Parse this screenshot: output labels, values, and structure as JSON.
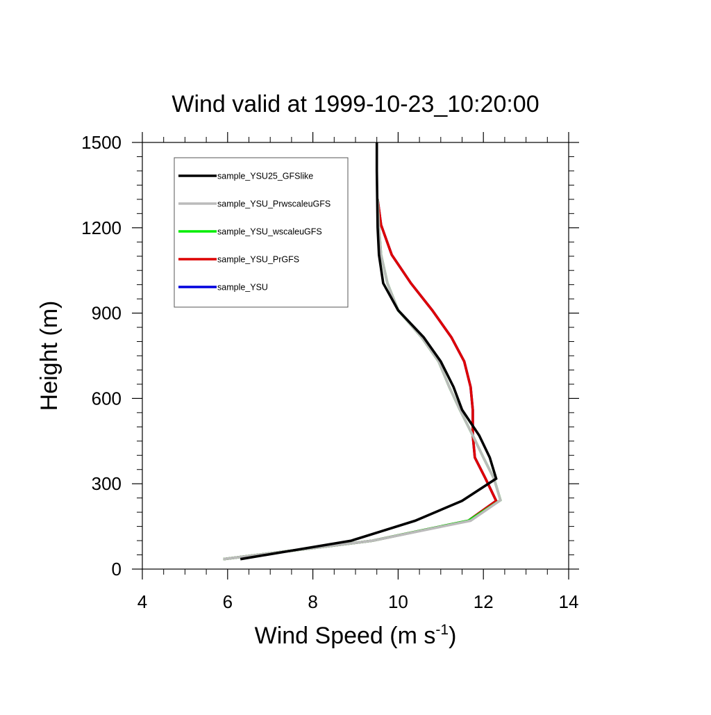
{
  "chart_data": {
    "type": "line",
    "title": "Wind valid at 1999-10-23_10:20:00",
    "xlabel": "Wind Speed (m s",
    "xlabel_superscript": "-1",
    "xlabel_suffix": ")",
    "ylabel": "Height (m)",
    "xlim": [
      4,
      14
    ],
    "ylim": [
      0,
      1500
    ],
    "x_ticks": [
      4,
      6,
      8,
      10,
      12,
      14
    ],
    "y_ticks": [
      0,
      300,
      600,
      900,
      1200,
      1500
    ],
    "x_tick_labels": [
      "4",
      "6",
      "8",
      "10",
      "12",
      "14"
    ],
    "y_tick_labels": [
      "0",
      "300",
      "600",
      "900",
      "1200",
      "1500"
    ],
    "x_minor_step": 0.5,
    "y_minor_step": 50,
    "grid": false,
    "legend_position": "top-left",
    "series": [
      {
        "name": "sample_YSU25_GFSlike",
        "color": "#000000",
        "points": [
          [
            6.3,
            35
          ],
          [
            8.9,
            100
          ],
          [
            10.4,
            170
          ],
          [
            11.5,
            240
          ],
          [
            12.3,
            318
          ],
          [
            12.15,
            392
          ],
          [
            11.9,
            470
          ],
          [
            11.5,
            560
          ],
          [
            11.3,
            640
          ],
          [
            11.0,
            730
          ],
          [
            10.6,
            815
          ],
          [
            10.0,
            910
          ],
          [
            9.65,
            1005
          ],
          [
            9.55,
            1105
          ],
          [
            9.52,
            1200
          ],
          [
            9.51,
            1300
          ],
          [
            9.5,
            1400
          ],
          [
            9.5,
            1500
          ]
        ]
      },
      {
        "name": "sample_YSU_PrwscaleuGFS",
        "color": "#bbbbbb",
        "points": [
          [
            5.9,
            35
          ],
          [
            9.4,
            100
          ],
          [
            11.7,
            170
          ],
          [
            12.4,
            242
          ],
          [
            12.25,
            318
          ],
          [
            12.0,
            392
          ],
          [
            11.75,
            470
          ],
          [
            11.45,
            560
          ],
          [
            11.2,
            640
          ],
          [
            10.95,
            730
          ],
          [
            10.55,
            815
          ],
          [
            10.0,
            910
          ],
          [
            9.75,
            1005
          ],
          [
            9.6,
            1105
          ],
          [
            9.55,
            1200
          ],
          [
            9.52,
            1300
          ]
        ]
      },
      {
        "name": "sample_YSU_wscaleuGFS",
        "color": "#00ee00",
        "points": [
          [
            5.9,
            35
          ],
          [
            9.4,
            100
          ],
          [
            11.65,
            170
          ],
          [
            12.4,
            242
          ],
          [
            12.25,
            318
          ],
          [
            12.0,
            392
          ],
          [
            11.75,
            470
          ],
          [
            11.45,
            560
          ],
          [
            11.2,
            640
          ],
          [
            10.95,
            730
          ],
          [
            10.55,
            815
          ],
          [
            10.0,
            910
          ],
          [
            9.75,
            1005
          ],
          [
            9.6,
            1105
          ],
          [
            9.55,
            1200
          ],
          [
            9.52,
            1300
          ]
        ]
      },
      {
        "name": "sample_YSU_PrGFS",
        "color": "#dd0000",
        "points": [
          [
            5.9,
            35
          ],
          [
            9.4,
            100
          ],
          [
            11.65,
            170
          ],
          [
            12.3,
            240
          ],
          [
            12.05,
            318
          ],
          [
            11.8,
            392
          ],
          [
            11.75,
            470
          ],
          [
            11.75,
            560
          ],
          [
            11.7,
            640
          ],
          [
            11.55,
            730
          ],
          [
            11.25,
            815
          ],
          [
            10.8,
            910
          ],
          [
            10.3,
            1005
          ],
          [
            9.85,
            1105
          ],
          [
            9.6,
            1210
          ],
          [
            9.52,
            1300
          ]
        ]
      },
      {
        "name": "sample_YSU",
        "color": "#0000dd",
        "points": [
          [
            5.9,
            35
          ],
          [
            9.4,
            100
          ],
          [
            11.65,
            170
          ],
          [
            12.3,
            240
          ],
          [
            12.05,
            318
          ],
          [
            11.8,
            392
          ],
          [
            11.75,
            470
          ],
          [
            11.75,
            560
          ],
          [
            11.7,
            640
          ],
          [
            11.55,
            730
          ],
          [
            11.25,
            815
          ],
          [
            10.8,
            910
          ],
          [
            10.3,
            1005
          ],
          [
            9.85,
            1105
          ],
          [
            9.6,
            1210
          ],
          [
            9.52,
            1300
          ]
        ]
      }
    ],
    "draw_order": [
      4,
      3,
      2,
      1,
      0
    ]
  }
}
